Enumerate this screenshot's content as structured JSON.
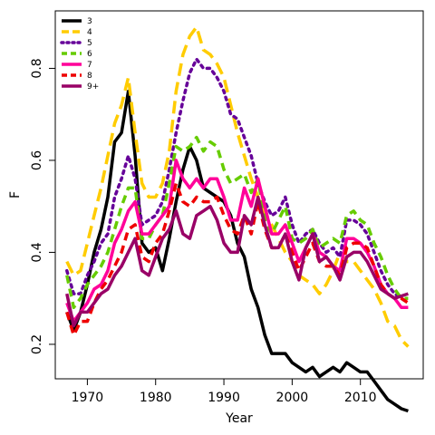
{
  "chart_data": {
    "type": "line",
    "title": "",
    "xlabel": "Year",
    "ylabel": "F",
    "xlim": [
      1965.3,
      2019.2
    ],
    "ylim": [
      0.125,
      0.925
    ],
    "x_ticks": [
      1970,
      1980,
      1990,
      2000,
      2010
    ],
    "y_ticks": [
      0.2,
      0.4,
      0.6,
      0.8
    ],
    "x_tick_labels": [
      "1970",
      "1980",
      "1990",
      "2000",
      "2010"
    ],
    "y_tick_labels": [
      "0.2",
      "0.4",
      "0.6",
      "0.8"
    ],
    "grid": false,
    "legend_position": "top-left",
    "x": [
      1967,
      1968,
      1969,
      1970,
      1971,
      1972,
      1973,
      1974,
      1975,
      1976,
      1977,
      1978,
      1979,
      1980,
      1981,
      1982,
      1983,
      1984,
      1985,
      1986,
      1987,
      1988,
      1989,
      1990,
      1991,
      1992,
      1993,
      1994,
      1995,
      1996,
      1997,
      1998,
      1999,
      2000,
      2001,
      2002,
      2003,
      2004,
      2005,
      2006,
      2007,
      2008,
      2009,
      2010,
      2011,
      2012,
      2013,
      2014,
      2015,
      2016,
      2017
    ],
    "series": [
      {
        "name": "3",
        "color": "#000000",
        "dash": "solid",
        "values": [
          0.27,
          0.23,
          0.27,
          0.33,
          0.4,
          0.45,
          0.52,
          0.64,
          0.66,
          0.75,
          0.61,
          0.42,
          0.4,
          0.41,
          0.36,
          0.43,
          0.51,
          0.58,
          0.63,
          0.6,
          0.54,
          0.53,
          0.52,
          0.51,
          0.48,
          0.42,
          0.39,
          0.32,
          0.28,
          0.22,
          0.18,
          0.18,
          0.18,
          0.16,
          0.15,
          0.14,
          0.15,
          0.13,
          0.14,
          0.15,
          0.14,
          0.16,
          0.15,
          0.14,
          0.14,
          0.12,
          0.1,
          0.08,
          0.07,
          0.06,
          0.055
        ]
      },
      {
        "name": "4",
        "color": "#FFCC00",
        "dash": "long",
        "values": [
          0.38,
          0.35,
          0.36,
          0.42,
          0.48,
          0.54,
          0.61,
          0.68,
          0.72,
          0.78,
          0.66,
          0.55,
          0.52,
          0.52,
          0.55,
          0.62,
          0.75,
          0.83,
          0.87,
          0.89,
          0.84,
          0.83,
          0.81,
          0.78,
          0.72,
          0.66,
          0.61,
          0.56,
          0.52,
          0.48,
          0.46,
          0.43,
          0.4,
          0.38,
          0.35,
          0.34,
          0.33,
          0.31,
          0.33,
          0.36,
          0.4,
          0.38,
          0.38,
          0.36,
          0.34,
          0.32,
          0.29,
          0.25,
          0.24,
          0.21,
          0.195
        ]
      },
      {
        "name": "5",
        "color": "#660099",
        "dash": "dot",
        "values": [
          0.36,
          0.31,
          0.31,
          0.35,
          0.38,
          0.42,
          0.44,
          0.52,
          0.56,
          0.61,
          0.56,
          0.46,
          0.47,
          0.48,
          0.51,
          0.58,
          0.66,
          0.73,
          0.79,
          0.82,
          0.8,
          0.8,
          0.78,
          0.75,
          0.7,
          0.69,
          0.65,
          0.61,
          0.55,
          0.51,
          0.48,
          0.49,
          0.52,
          0.46,
          0.42,
          0.44,
          0.45,
          0.42,
          0.4,
          0.41,
          0.39,
          0.47,
          0.47,
          0.46,
          0.44,
          0.4,
          0.36,
          0.33,
          0.31,
          0.3,
          0.29
        ]
      },
      {
        "name": "6",
        "color": "#66CC00",
        "dash": "dash",
        "values": [
          0.35,
          0.28,
          0.3,
          0.33,
          0.35,
          0.37,
          0.4,
          0.45,
          0.5,
          0.54,
          0.54,
          0.43,
          0.43,
          0.46,
          0.48,
          0.55,
          0.63,
          0.62,
          0.63,
          0.65,
          0.62,
          0.64,
          0.63,
          0.58,
          0.55,
          0.56,
          0.57,
          0.53,
          0.56,
          0.47,
          0.44,
          0.47,
          0.5,
          0.43,
          0.42,
          0.43,
          0.45,
          0.41,
          0.42,
          0.43,
          0.42,
          0.48,
          0.49,
          0.47,
          0.46,
          0.42,
          0.39,
          0.35,
          0.32,
          0.3,
          0.3
        ]
      },
      {
        "name": "7",
        "color": "#FF0099",
        "dash": "solid",
        "values": [
          0.29,
          0.25,
          0.27,
          0.29,
          0.32,
          0.33,
          0.36,
          0.42,
          0.45,
          0.49,
          0.51,
          0.44,
          0.44,
          0.46,
          0.48,
          0.5,
          0.6,
          0.56,
          0.54,
          0.56,
          0.54,
          0.56,
          0.56,
          0.52,
          0.47,
          0.47,
          0.54,
          0.5,
          0.56,
          0.5,
          0.44,
          0.44,
          0.46,
          0.42,
          0.38,
          0.41,
          0.44,
          0.4,
          0.39,
          0.37,
          0.36,
          0.43,
          0.43,
          0.42,
          0.4,
          0.37,
          0.33,
          0.31,
          0.3,
          0.28,
          0.28
        ]
      },
      {
        "name": "8",
        "color": "#EE0000",
        "dash": "dash",
        "values": [
          0.27,
          0.22,
          0.25,
          0.25,
          0.29,
          0.32,
          0.34,
          0.37,
          0.4,
          0.45,
          0.46,
          0.39,
          0.38,
          0.42,
          0.44,
          0.49,
          0.55,
          0.51,
          0.5,
          0.52,
          0.51,
          0.51,
          0.52,
          0.48,
          0.45,
          0.44,
          0.48,
          0.44,
          0.51,
          0.45,
          0.41,
          0.41,
          0.44,
          0.4,
          0.36,
          0.39,
          0.42,
          0.38,
          0.37,
          0.37,
          0.35,
          0.41,
          0.42,
          0.42,
          0.41,
          0.37,
          0.33,
          0.31,
          0.3,
          0.3,
          0.29
        ]
      },
      {
        "name": "9+",
        "color": "#990066",
        "dash": "solid",
        "values": [
          0.31,
          0.24,
          0.27,
          0.27,
          0.29,
          0.31,
          0.32,
          0.35,
          0.37,
          0.4,
          0.43,
          0.36,
          0.35,
          0.39,
          0.43,
          0.45,
          0.49,
          0.44,
          0.43,
          0.48,
          0.49,
          0.5,
          0.47,
          0.42,
          0.4,
          0.4,
          0.48,
          0.46,
          0.52,
          0.46,
          0.41,
          0.41,
          0.44,
          0.38,
          0.34,
          0.41,
          0.44,
          0.38,
          0.39,
          0.37,
          0.34,
          0.39,
          0.4,
          0.4,
          0.38,
          0.35,
          0.32,
          0.31,
          0.3,
          0.305,
          0.31
        ]
      }
    ]
  }
}
